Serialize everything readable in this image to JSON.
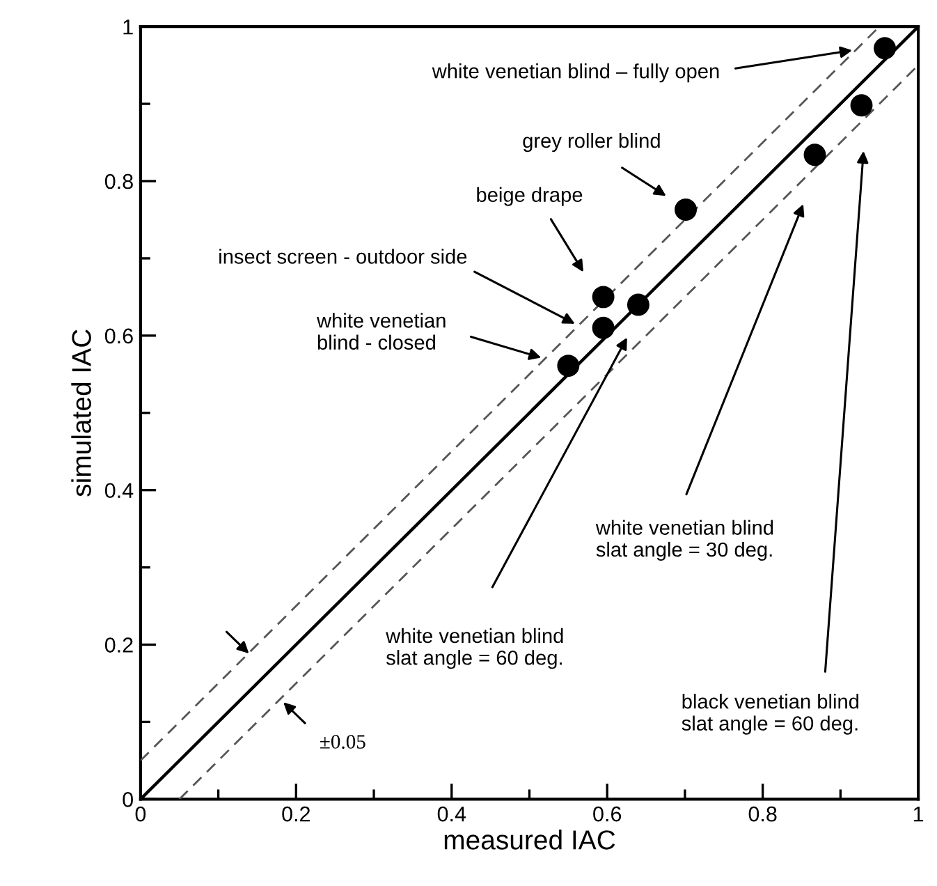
{
  "chart_data": {
    "type": "scatter",
    "xlabel": "measured IAC",
    "ylabel": "simulated IAC",
    "xlim": [
      0,
      1
    ],
    "ylim": [
      0,
      1
    ],
    "xticks": [
      0,
      {
        "value": 0.1,
        "label": null
      },
      0.2,
      {
        "value": 0.3,
        "label": null
      },
      0.4,
      {
        "value": 0.5,
        "label": null
      },
      0.6,
      {
        "value": 0.7,
        "label": null
      },
      0.8,
      {
        "value": 0.9,
        "label": null
      },
      1
    ],
    "yticks": [
      0,
      {
        "value": 0.1,
        "label": null
      },
      0.2,
      {
        "value": 0.3,
        "label": null
      },
      0.4,
      {
        "value": 0.5,
        "label": null
      },
      0.6,
      {
        "value": 0.7,
        "label": null
      },
      0.8,
      {
        "value": 0.9,
        "label": null
      },
      1
    ],
    "grid": false,
    "legend": false,
    "marker": "circle",
    "x": [
      0.957,
      0.927,
      0.867,
      0.701,
      0.595,
      0.64,
      0.595,
      0.55
    ],
    "series": [
      {
        "color": "#000000",
        "values": [
          0.972,
          0.898,
          0.834,
          0.763,
          0.65,
          0.64,
          0.61,
          0.561
        ]
      },
      {
        "type": "line",
        "color": "#000000",
        "line_style": "solid",
        "marker": "none",
        "x": [
          0,
          1
        ],
        "values": [
          0,
          1
        ]
      },
      {
        "type": "line",
        "color": "#555555",
        "line_style": "dashed",
        "marker": "none",
        "x": [
          0,
          0.95
        ],
        "values": [
          0.05,
          1
        ]
      },
      {
        "type": "line",
        "color": "#555555",
        "line_style": "dashed",
        "marker": "none",
        "x": [
          0.05,
          1
        ],
        "values": [
          0,
          0.95
        ]
      }
    ],
    "annotations": [
      {
        "text": "white venetian blind – fully open",
        "x": 0.92,
        "y": 0.97
      },
      "grey roller blind",
      "beige drape",
      {
        "text": "insect screen - outdoor side",
        "x": 0.563,
        "y": 0.613
      },
      {
        "text": "white venetian\nblind - closed",
        "x": 0.52,
        "y": 0.57
      },
      "white venetian blind\nslat angle = 60 deg.",
      "white venetian blind\nslat angle = 30 deg.",
      "black venetian blind\nslat angle = 60 deg.",
      "±0.05"
    ]
  }
}
